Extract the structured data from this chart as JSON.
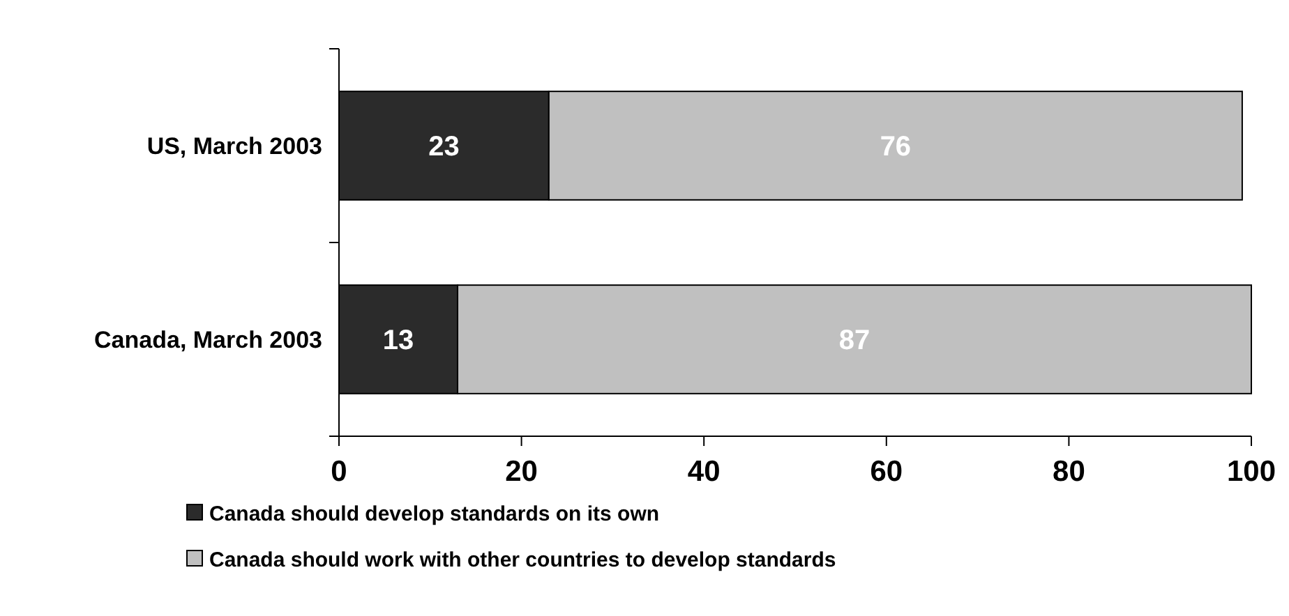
{
  "chart_data": {
    "type": "bar",
    "orientation": "horizontal",
    "stacked": true,
    "categories": [
      "US, March 2003",
      "Canada, March 2003"
    ],
    "series": [
      {
        "name": "Canada should develop standards on its own",
        "color": "#2b2b2b",
        "values": [
          23,
          13
        ]
      },
      {
        "name": "Canada should work with other countries to develop standards",
        "color": "#c0c0c0",
        "values": [
          76,
          87
        ]
      }
    ],
    "xlim": [
      0,
      100
    ],
    "xticks": [
      0,
      20,
      40,
      60,
      80,
      100
    ],
    "data_labels": true,
    "legend": "bottom",
    "grid": false
  }
}
